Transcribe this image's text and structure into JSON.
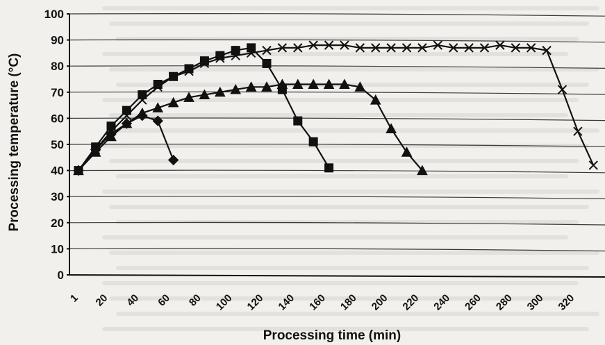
{
  "chart_data": {
    "type": "line",
    "xlabel": "Processing time (min)",
    "ylabel": "Processing temperature (°C)",
    "x_ticks": [
      "1",
      "20",
      "40",
      "60",
      "80",
      "100",
      "120",
      "140",
      "160",
      "180",
      "200",
      "220",
      "240",
      "260",
      "280",
      "300",
      "320"
    ],
    "y_ticks": [
      "0",
      "10",
      "20",
      "30",
      "40",
      "50",
      "60",
      "70",
      "80",
      "90",
      "100"
    ],
    "xlim": [
      1,
      335
    ],
    "ylim": [
      0,
      100
    ],
    "grid": "horizontal",
    "series": [
      {
        "marker": "diamond",
        "points": [
          [
            1,
            40
          ],
          [
            12,
            48
          ],
          [
            22,
            54
          ],
          [
            32,
            58
          ],
          [
            42,
            61
          ],
          [
            52,
            59
          ],
          [
            62,
            44
          ]
        ]
      },
      {
        "marker": "square",
        "points": [
          [
            1,
            40
          ],
          [
            12,
            49
          ],
          [
            22,
            57
          ],
          [
            32,
            63
          ],
          [
            42,
            69
          ],
          [
            52,
            73
          ],
          [
            62,
            76
          ],
          [
            72,
            79
          ],
          [
            82,
            82
          ],
          [
            92,
            84
          ],
          [
            102,
            86
          ],
          [
            112,
            87
          ],
          [
            122,
            81
          ],
          [
            132,
            71
          ],
          [
            142,
            59
          ],
          [
            152,
            51
          ],
          [
            162,
            41
          ]
        ]
      },
      {
        "marker": "triangle",
        "points": [
          [
            1,
            40
          ],
          [
            12,
            47
          ],
          [
            22,
            53
          ],
          [
            32,
            58
          ],
          [
            42,
            62
          ],
          [
            52,
            64
          ],
          [
            62,
            66
          ],
          [
            72,
            68
          ],
          [
            82,
            69
          ],
          [
            92,
            70
          ],
          [
            102,
            71
          ],
          [
            112,
            72
          ],
          [
            122,
            72
          ],
          [
            132,
            73
          ],
          [
            142,
            73
          ],
          [
            152,
            73
          ],
          [
            162,
            73
          ],
          [
            172,
            73
          ],
          [
            182,
            72
          ],
          [
            192,
            67
          ],
          [
            202,
            56
          ],
          [
            212,
            47
          ],
          [
            222,
            40
          ]
        ]
      },
      {
        "marker": "x",
        "points": [
          [
            1,
            40
          ],
          [
            12,
            48
          ],
          [
            22,
            55
          ],
          [
            32,
            61
          ],
          [
            42,
            67
          ],
          [
            52,
            72
          ],
          [
            62,
            76
          ],
          [
            72,
            78
          ],
          [
            82,
            81
          ],
          [
            92,
            83
          ],
          [
            102,
            84
          ],
          [
            112,
            85
          ],
          [
            122,
            86
          ],
          [
            132,
            87
          ],
          [
            142,
            87
          ],
          [
            152,
            88
          ],
          [
            162,
            88
          ],
          [
            172,
            88
          ],
          [
            182,
            87
          ],
          [
            192,
            87
          ],
          [
            202,
            87
          ],
          [
            212,
            87
          ],
          [
            222,
            87
          ],
          [
            232,
            88
          ],
          [
            242,
            87
          ],
          [
            252,
            87
          ],
          [
            262,
            87
          ],
          [
            272,
            88
          ],
          [
            282,
            87
          ],
          [
            292,
            87
          ],
          [
            302,
            86
          ],
          [
            312,
            71
          ],
          [
            322,
            55
          ],
          [
            332,
            42
          ]
        ]
      }
    ]
  }
}
